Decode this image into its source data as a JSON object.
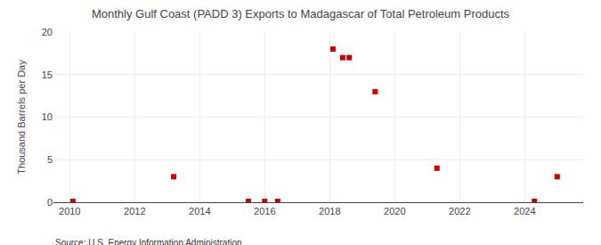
{
  "chart_data": {
    "type": "scatter",
    "title": "Monthly Gulf Coast (PADD 3) Exports to Madagascar of Total Petroleum Products",
    "ylabel": "Thousand Barrels per Day",
    "annotation": "Source: U.S. Energy Information Administration",
    "color": "#cc0000",
    "marker": "square",
    "grid": true,
    "x": [
      2010.1,
      2013.2,
      2015.5,
      2016.0,
      2016.4,
      2018.1,
      2018.4,
      2018.6,
      2019.4,
      2021.3,
      2024.3,
      2025.0
    ],
    "values": [
      0.1,
      3.0,
      0.1,
      0.1,
      0.1,
      18.0,
      17.0,
      17.0,
      13.0,
      4.0,
      0.1,
      3.0
    ],
    "xlim": [
      2009.5,
      2025.8
    ],
    "xticks": [
      2010,
      2012,
      2014,
      2016,
      2018,
      2020,
      2022,
      2024
    ],
    "ylim": [
      0,
      20
    ],
    "yticks": [
      0,
      5,
      10,
      15,
      20
    ]
  }
}
